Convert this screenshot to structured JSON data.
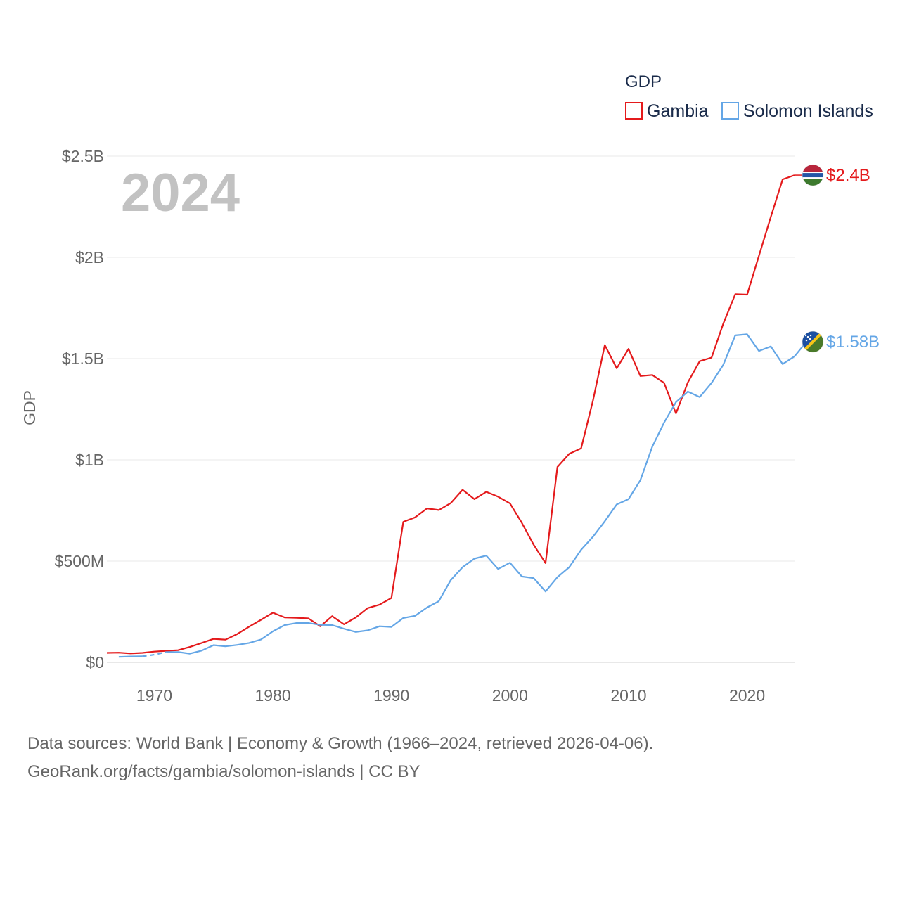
{
  "chart_data": {
    "type": "line",
    "title": "GDP",
    "ylabel": "GDP",
    "year_label": "2024",
    "x_ticks": [
      1970,
      1980,
      1990,
      2000,
      2010,
      2020
    ],
    "xlim": [
      1966,
      2024
    ],
    "ylim": [
      0,
      2500000000
    ],
    "y_ticks": [
      {
        "value": 0,
        "label": "$0"
      },
      {
        "value": 500000000,
        "label": "$500M"
      },
      {
        "value": 1000000000,
        "label": "$1B"
      },
      {
        "value": 1500000000,
        "label": "$1.5B"
      },
      {
        "value": 2000000000,
        "label": "$2B"
      },
      {
        "value": 2500000000,
        "label": "$2.5B"
      }
    ],
    "grid": true,
    "legend_position": "top-right",
    "series": [
      {
        "name": "Gambia",
        "color": "#e41a1c",
        "end_label": "$2.4B",
        "flag": "gambia-flag",
        "start_year": 1966,
        "values": [
          0.047,
          0.048,
          0.044,
          0.047,
          0.053,
          0.057,
          0.06,
          0.076,
          0.096,
          0.116,
          0.112,
          0.14,
          0.176,
          0.21,
          0.245,
          0.222,
          0.22,
          0.217,
          0.178,
          0.228,
          0.188,
          0.222,
          0.268,
          0.285,
          0.318,
          0.694,
          0.716,
          0.76,
          0.752,
          0.786,
          0.852,
          0.806,
          0.842,
          0.818,
          0.785,
          0.689,
          0.581,
          0.49,
          0.965,
          1.03,
          1.057,
          1.292,
          1.567,
          1.452,
          1.548,
          1.414,
          1.419,
          1.38,
          1.229,
          1.382,
          1.487,
          1.505,
          1.674,
          1.818,
          1.816,
          2.008,
          2.2,
          2.385,
          2.406
        ]
      },
      {
        "name": "Solomon Islands",
        "color": "#64a6e6",
        "end_label": "$1.58B",
        "flag": "solomon-islands-flag",
        "start_year": 1967,
        "dashed_years": [
          1969,
          1971
        ],
        "values": [
          0.027,
          0.029,
          0.03,
          0.038,
          0.051,
          0.051,
          0.043,
          0.058,
          0.085,
          0.079,
          0.086,
          0.096,
          0.113,
          0.153,
          0.184,
          0.194,
          0.194,
          0.185,
          0.184,
          0.166,
          0.15,
          0.158,
          0.178,
          0.175,
          0.219,
          0.23,
          0.271,
          0.302,
          0.406,
          0.47,
          0.512,
          0.527,
          0.461,
          0.492,
          0.424,
          0.416,
          0.35,
          0.421,
          0.47,
          0.556,
          0.62,
          0.697,
          0.78,
          0.806,
          0.9,
          1.065,
          1.184,
          1.285,
          1.337,
          1.31,
          1.38,
          1.47,
          1.615,
          1.62,
          1.538,
          1.56,
          1.473,
          1.511,
          1.583
        ]
      }
    ]
  },
  "footer": {
    "line1": "Data sources: World Bank | Economy & Growth (1966–2024, retrieved 2026-04-06).",
    "line2": "GeoRank.org/facts/gambia/solomon-islands | CC BY"
  }
}
